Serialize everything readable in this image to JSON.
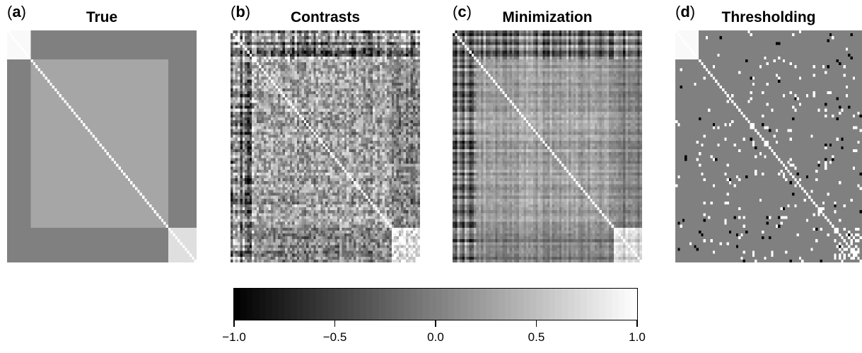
{
  "chart_data": [
    {
      "type": "heatmap",
      "panel": "(a)",
      "title": "True",
      "matrix_size": 80,
      "blocks": [
        {
          "from": 0,
          "to": 10,
          "value": 0.95
        },
        {
          "from": 10,
          "to": 68,
          "value": 0.3
        },
        {
          "from": 68,
          "to": 80,
          "value": 0.75
        }
      ],
      "off_block_value": 0.0,
      "diagonal": 1.0
    },
    {
      "type": "heatmap",
      "panel": "(b)",
      "title": "Contrasts",
      "matrix_size": 80,
      "description_values": "noisy estimate, values in [-1, 1]",
      "diagonal": 1.0
    },
    {
      "type": "heatmap",
      "panel": "(c)",
      "title": "Minimization",
      "matrix_size": 80,
      "diagonal": 1.0
    },
    {
      "type": "heatmap",
      "panel": "(d)",
      "title": "Thresholding",
      "matrix_size": 80,
      "background_value": 0.0,
      "diagonal": 1.0
    }
  ],
  "colorbar": {
    "range": [
      -1.0,
      1.0
    ],
    "tick_values": [
      -1.0,
      -0.5,
      0.0,
      0.5,
      1.0
    ],
    "tick_labels": [
      "−1.0",
      "−0.5",
      "0.0",
      "0.5",
      "1.0"
    ],
    "colormap": "grayscale, black = -1, white = 1"
  },
  "panels": [
    {
      "letter_open": "(",
      "letter": "a",
      "letter_close": ")",
      "title": "True"
    },
    {
      "letter_open": "(",
      "letter": "b",
      "letter_close": ")",
      "title": "Contrasts"
    },
    {
      "letter_open": "(",
      "letter": "c",
      "letter_close": ")",
      "title": "Minimization"
    },
    {
      "letter_open": "(",
      "letter": "d",
      "letter_close": ")",
      "title": "Thresholding"
    }
  ]
}
